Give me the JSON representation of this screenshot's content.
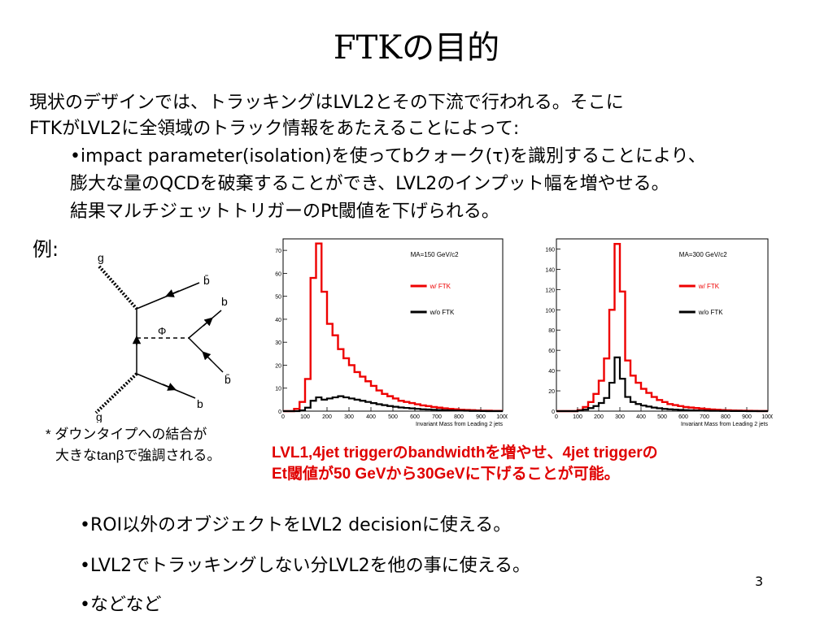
{
  "slide": {
    "title": "FTKの目的",
    "page_number": "3"
  },
  "intro": {
    "line1": "現状のデザインでは、トラッキングはLVL2とその下流で行われる。そこに",
    "line2": "FTKがLVL2に全領域のトラック情報をあたえることによって:",
    "bullet1_line1": "•impact parameter(isolation)を使ってbクォーク(τ)を識別することにより、",
    "bullet1_line2": "膨大な量のQCDを破棄することができ、LVL2のインプット幅を増やせる。",
    "bullet1_line3": "結果マルチジェットトリガーのPt閾値を下げられる。"
  },
  "example": {
    "label": "例:",
    "feynman": {
      "labels": {
        "g_top": "g",
        "g_bottom": "g",
        "bbar_top": "b̄",
        "b_top": "b",
        "bbar_right": "b̄",
        "b_bottom": "b",
        "phi": "Φ"
      }
    },
    "caption_line1": "* ダウンタイプへの結合が",
    "caption_line2": "大きなtanβで強調される。"
  },
  "red_note": {
    "line1": "LVL1,4jet triggerのbandwidthを増やせ、4jet triggerの",
    "line2": "Et閾値が50 GeVから30GeVに下げることが可能。"
  },
  "bottom_bullets": [
    "•ROI以外のオブジェクトをLVL2 decisionに使える。",
    "•LVL2でトラッキングしない分LVL2を他の事に使える。",
    "•などなど"
  ],
  "chart_data": [
    {
      "type": "line",
      "title": "MA=150 GeV/c2",
      "xlabel": "Invariant Mass from Leading 2 jets",
      "xlim": [
        0,
        1000
      ],
      "ylim": [
        0,
        75
      ],
      "xticks": [
        "0",
        "100",
        "200",
        "300",
        "400",
        "500",
        "600",
        "700",
        "800",
        "900",
        "1000"
      ],
      "yticks": [
        "0",
        "10",
        "20",
        "30",
        "40",
        "50",
        "60",
        "70"
      ],
      "legend": [
        "w/ FTK",
        "w/o FTK"
      ],
      "colors": {
        "w/ FTK": "#ee0000",
        "w/o FTK": "#000000"
      },
      "x": [
        0,
        25,
        50,
        75,
        100,
        125,
        150,
        175,
        200,
        225,
        250,
        275,
        300,
        325,
        350,
        375,
        400,
        425,
        450,
        475,
        500,
        525,
        550,
        575,
        600,
        625,
        650,
        675,
        700,
        725,
        750,
        775,
        800,
        825,
        850,
        875,
        900,
        925,
        950,
        975
      ],
      "series": [
        {
          "name": "w/ FTK",
          "values": [
            0,
            0,
            1,
            4,
            14,
            58,
            73,
            52,
            38,
            33,
            27,
            23,
            20,
            17,
            15,
            13,
            11,
            9,
            7.5,
            6.5,
            5.5,
            4.5,
            4,
            3.5,
            3,
            2.5,
            2.2,
            1.8,
            1.5,
            1.2,
            1,
            0.8,
            0.6,
            0.5,
            0.4,
            0.3,
            0.2,
            0.2,
            0.1,
            0.1
          ]
        },
        {
          "name": "w/o FTK",
          "values": [
            0,
            0,
            0,
            0.3,
            1.5,
            4.5,
            6,
            5,
            5.5,
            6,
            6.5,
            6,
            5.5,
            5,
            4.5,
            4,
            3.5,
            3,
            2.6,
            2.2,
            1.9,
            1.6,
            1.4,
            1.2,
            1,
            0.8,
            0.7,
            0.6,
            0.5,
            0.4,
            0.3,
            0.25,
            0.2,
            0.15,
            0.1,
            0.1,
            0.05,
            0,
            0,
            0
          ]
        }
      ]
    },
    {
      "type": "line",
      "title": "MA=300 GeV/c2",
      "xlabel": "Invariant Mass from Leading 2 jets",
      "xlim": [
        0,
        1000
      ],
      "ylim": [
        0,
        170
      ],
      "xticks": [
        "0",
        "100",
        "200",
        "300",
        "400",
        "500",
        "600",
        "700",
        "800",
        "900",
        "1000"
      ],
      "yticks": [
        "0",
        "20",
        "40",
        "60",
        "80",
        "100",
        "120",
        "140",
        "160"
      ],
      "legend": [
        "w/ FTK",
        "w/o FTK"
      ],
      "colors": {
        "w/ FTK": "#ee0000",
        "w/o FTK": "#000000"
      },
      "x": [
        0,
        25,
        50,
        75,
        100,
        125,
        150,
        175,
        200,
        225,
        250,
        275,
        300,
        325,
        350,
        375,
        400,
        425,
        450,
        475,
        500,
        525,
        550,
        575,
        600,
        625,
        650,
        675,
        700,
        725,
        750,
        775,
        800,
        825,
        850,
        875,
        900,
        925,
        950,
        975
      ],
      "series": [
        {
          "name": "w/ FTK",
          "values": [
            0,
            0,
            0,
            0,
            1,
            4,
            9,
            17,
            30,
            52,
            100,
            165,
            118,
            50,
            35,
            28,
            22,
            18,
            14,
            11,
            9,
            7,
            6,
            5,
            4,
            3.5,
            3,
            2.5,
            2,
            1.6,
            1.3,
            1,
            0.8,
            0.6,
            0.5,
            0.4,
            0.3,
            0.2,
            0.1,
            0.1
          ]
        },
        {
          "name": "w/o FTK",
          "values": [
            0,
            0,
            0,
            0,
            0.5,
            1.5,
            3,
            5,
            8,
            13,
            28,
            53,
            32,
            14,
            9,
            7,
            5.5,
            4.5,
            3.5,
            2.8,
            2.2,
            1.8,
            1.5,
            1.2,
            1,
            0.8,
            0.6,
            0.5,
            0.4,
            0.3,
            0.25,
            0.2,
            0.15,
            0.1,
            0.1,
            0.05,
            0,
            0,
            0,
            0
          ]
        }
      ]
    }
  ]
}
